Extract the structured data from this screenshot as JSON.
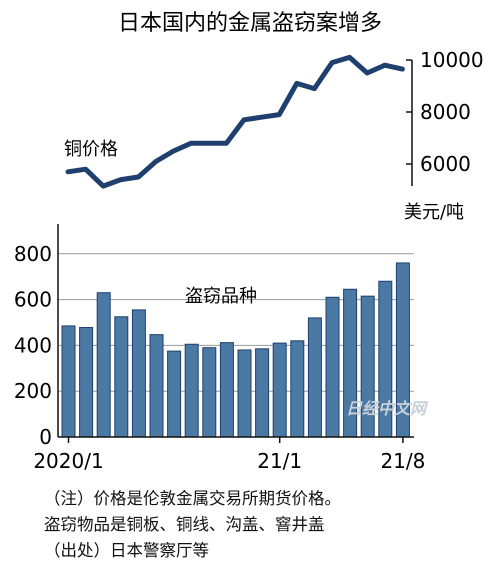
{
  "title": "日本国内的金属盗窃案增多",
  "watermark": "日经中文网",
  "chart_data": [
    {
      "type": "line",
      "series_label": "铜价格",
      "unit_label": "美元/吨",
      "y_ticks": [
        10000,
        8000,
        6000
      ],
      "ylim": [
        5000,
        10500
      ],
      "values": [
        5700,
        5800,
        5150,
        5400,
        5500,
        6100,
        6500,
        6800,
        6800,
        6800,
        7700,
        7800,
        7900,
        9100,
        8900,
        9900,
        10100,
        9500,
        9800,
        9650
      ]
    },
    {
      "type": "bar",
      "series_label": "盗窃品种",
      "y_ticks": [
        800,
        600,
        400,
        200,
        0
      ],
      "ylim": [
        0,
        930
      ],
      "x_tick_labels": [
        {
          "index": 0,
          "label": "2020/1"
        },
        {
          "index": 12,
          "label": "21/1"
        },
        {
          "index": 19,
          "label": "21/8"
        }
      ],
      "values": [
        485,
        478,
        630,
        525,
        555,
        447,
        375,
        405,
        390,
        412,
        380,
        385,
        410,
        420,
        520,
        610,
        645,
        615,
        680,
        760
      ]
    }
  ],
  "notes": [
    "（注）价格是伦敦金属交易所期货价格。",
    "盗窃物品是铜板、铜线、沟盖、窨井盖",
    "（出处）日本警察厅等"
  ]
}
